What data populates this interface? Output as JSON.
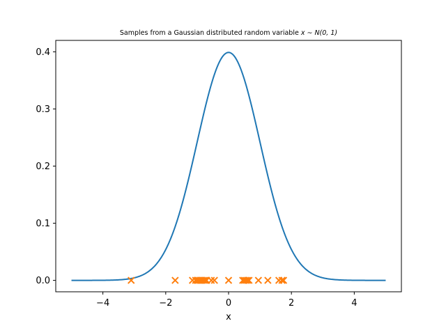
{
  "chart_data": {
    "type": "line",
    "title_prefix": "Samples from a Gaussian distributed random variable ",
    "title_math": "x ∼ N(0, 1)",
    "xlabel": "x",
    "ylabel": "",
    "xlim": [
      -5.5,
      5.5
    ],
    "ylim": [
      -0.02,
      0.42
    ],
    "xticks": [
      -4,
      -2,
      0,
      2,
      4
    ],
    "xtick_labels": [
      "−4",
      "−2",
      "0",
      "2",
      "4"
    ],
    "yticks": [
      0.0,
      0.1,
      0.2,
      0.3,
      0.4
    ],
    "ytick_labels": [
      "0.0",
      "0.1",
      "0.2",
      "0.3",
      "0.4"
    ],
    "grid": false,
    "series": [
      {
        "kind": "line",
        "function": "standard normal pdf",
        "x_range": [
          -5,
          5
        ],
        "color": "#1f77b4"
      },
      {
        "kind": "scatter",
        "marker": "x",
        "color": "#ff7f0e",
        "x": [
          -3.1,
          -1.7,
          -1.15,
          -1.05,
          -1.0,
          -0.95,
          -0.9,
          -0.85,
          -0.8,
          -0.75,
          -0.7,
          -0.55,
          -0.45,
          0.0,
          0.45,
          0.5,
          0.55,
          0.6,
          0.65,
          0.95,
          1.25,
          1.6,
          1.7,
          1.75
        ],
        "y": [
          0,
          0,
          0,
          0,
          0,
          0,
          0,
          0,
          0,
          0,
          0,
          0,
          0,
          0,
          0,
          0,
          0,
          0,
          0,
          0,
          0,
          0,
          0,
          0
        ]
      }
    ]
  }
}
